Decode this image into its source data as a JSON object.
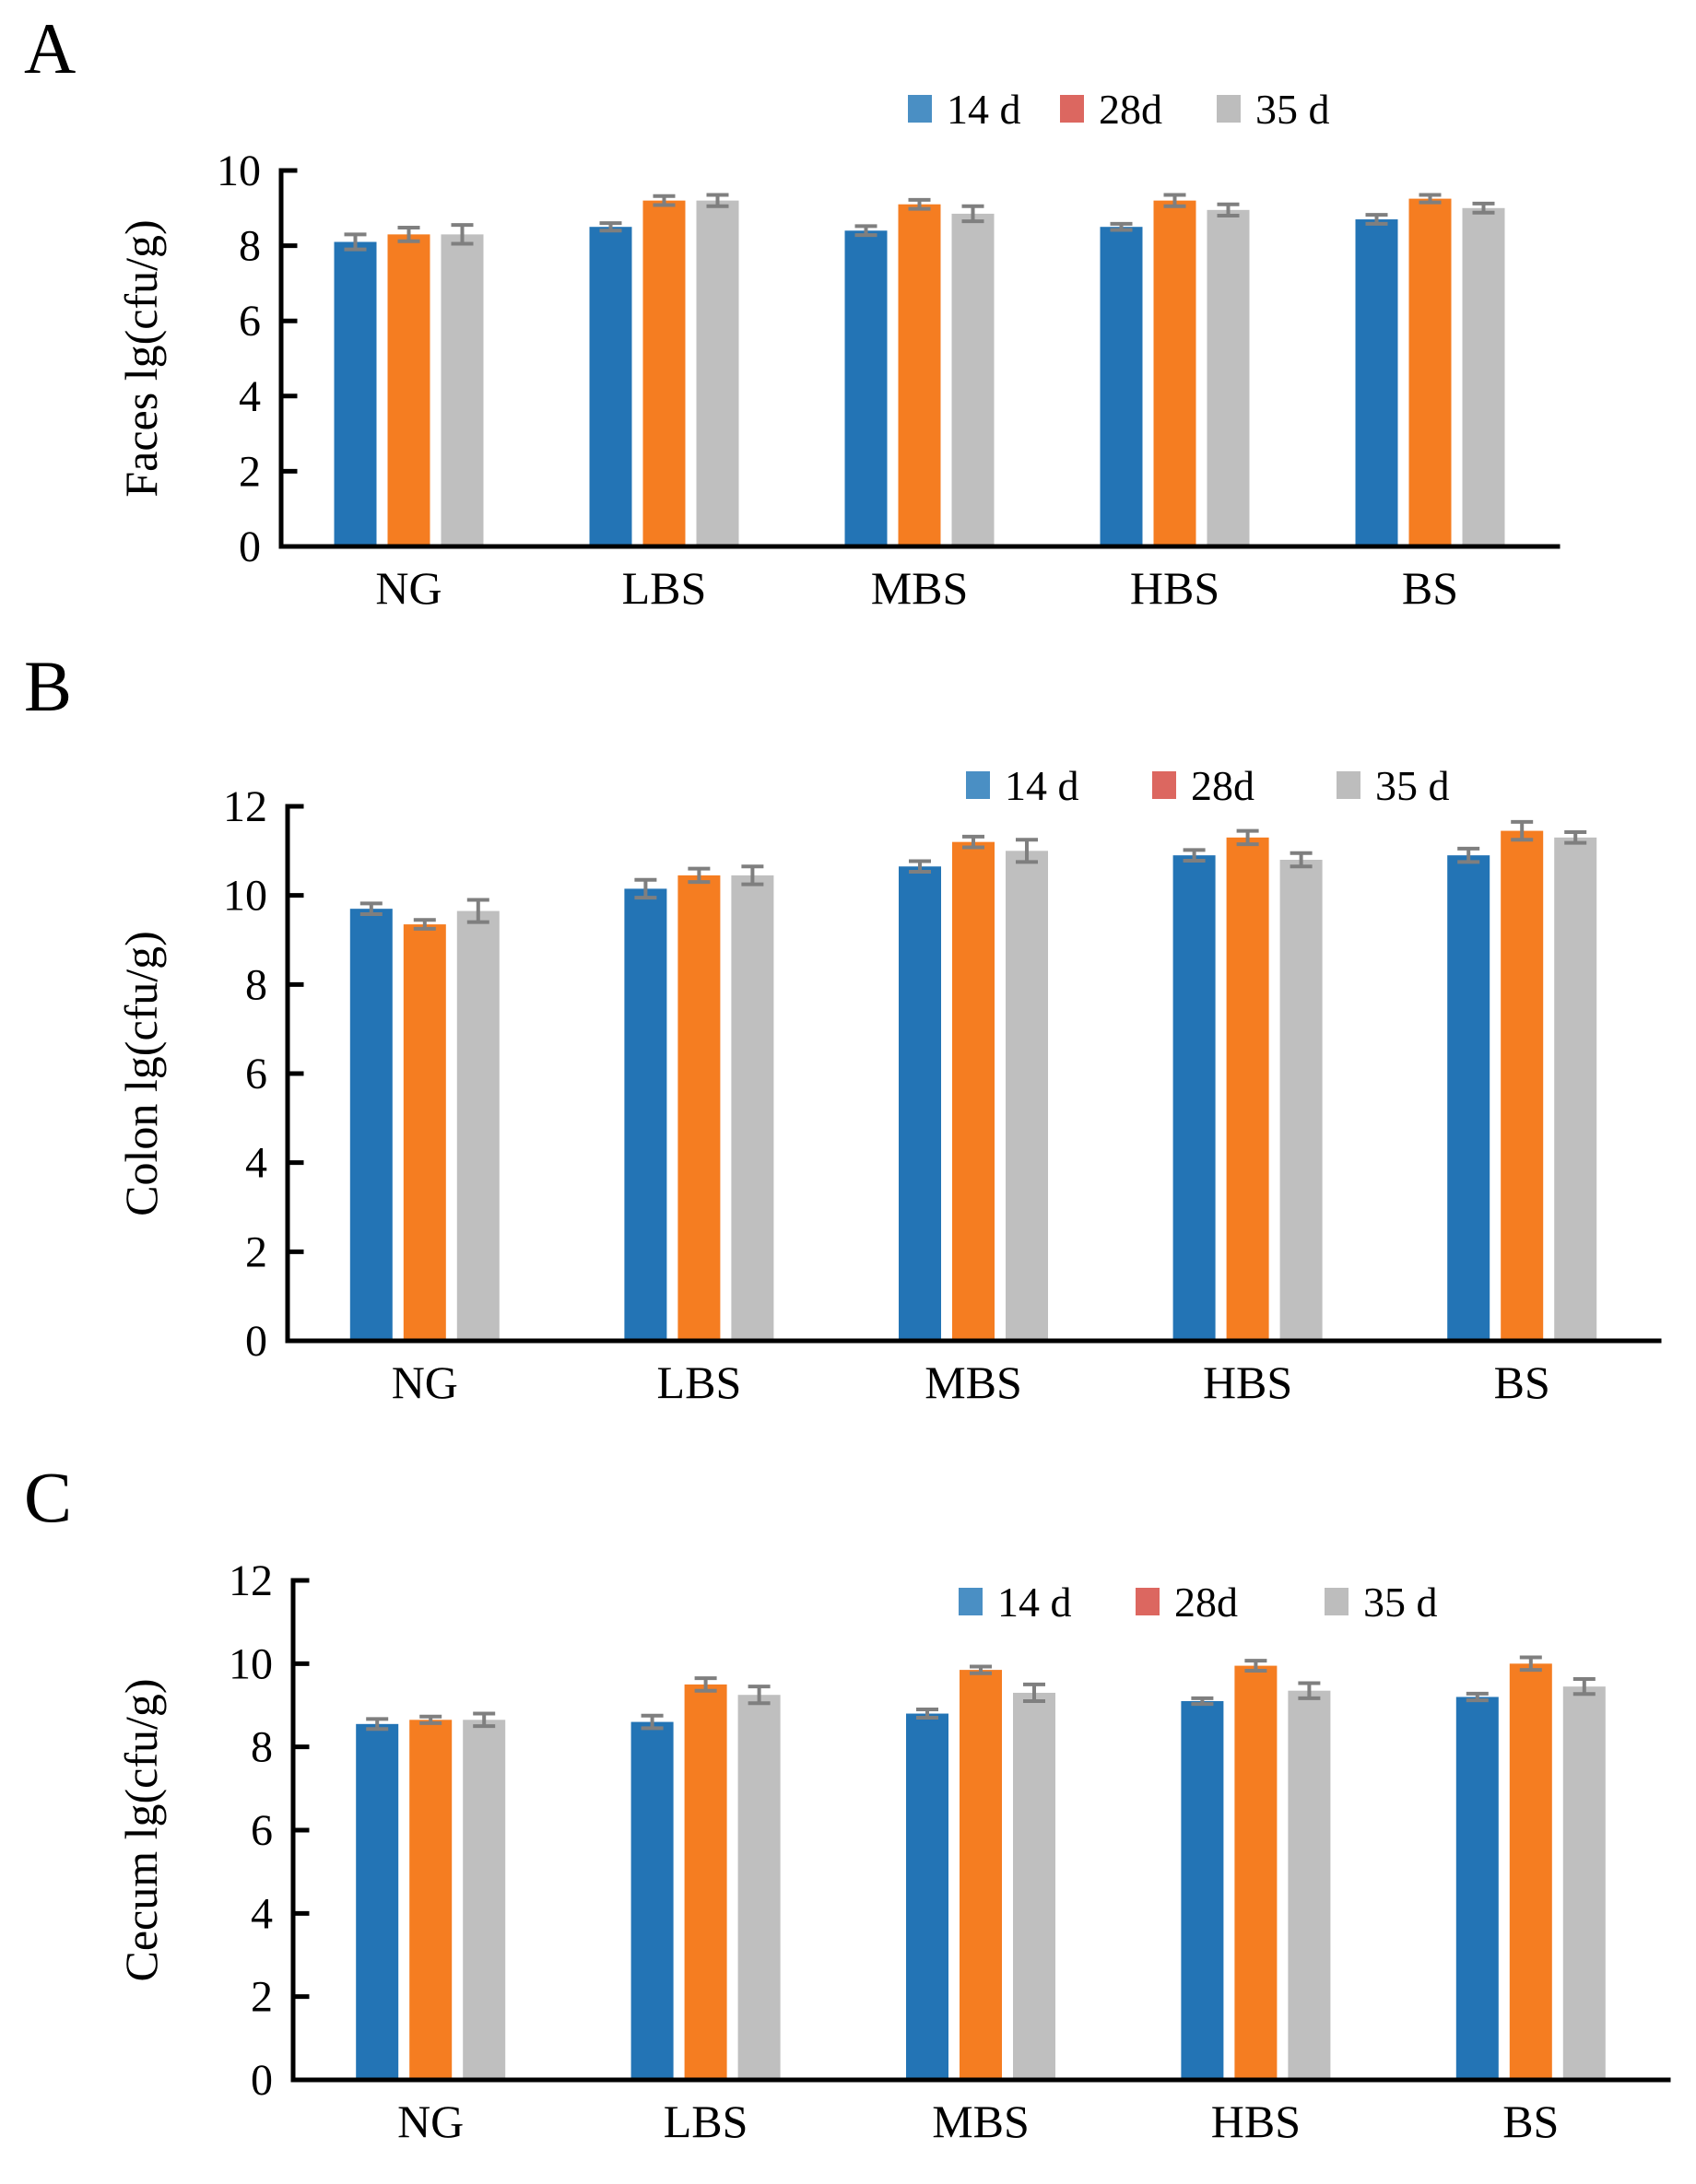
{
  "legend": {
    "items": [
      {
        "label": "14 d",
        "swatch_color": "#4A8FC4"
      },
      {
        "label": "28d",
        "swatch_color": "#DC6760"
      },
      {
        "label": "35 d",
        "swatch_color": "#BDBDBD"
      }
    ]
  },
  "colors": {
    "bar_14d": "#2374B5",
    "bar_28d": "#F57D21",
    "bar_35d": "#BFBFBF",
    "error_bar": "#7F7F7F",
    "axis": "#000000"
  },
  "chart_data": [
    {
      "panel": "A",
      "type": "bar",
      "ylabel": "Faces lg(cfu/g)",
      "categories": [
        "NG",
        "LBS",
        "MBS",
        "HBS",
        "BS"
      ],
      "series": [
        {
          "name": "14 d",
          "values": [
            8.1,
            8.5,
            8.4,
            8.5,
            8.7
          ],
          "errors": [
            0.2,
            0.1,
            0.12,
            0.08,
            0.12
          ]
        },
        {
          "name": "28d",
          "values": [
            8.3,
            9.2,
            9.1,
            9.2,
            9.25
          ],
          "errors": [
            0.18,
            0.12,
            0.12,
            0.15,
            0.1
          ]
        },
        {
          "name": "35 d",
          "values": [
            8.3,
            9.2,
            8.85,
            8.95,
            9.0
          ],
          "errors": [
            0.25,
            0.15,
            0.2,
            0.15,
            0.12
          ]
        }
      ],
      "ylim": [
        0,
        10
      ],
      "ytick_step": 2,
      "grid": false,
      "legend_position": "above-right"
    },
    {
      "panel": "B",
      "type": "bar",
      "ylabel": "Colon lg(cfu/g)",
      "categories": [
        "NG",
        "LBS",
        "MBS",
        "HBS",
        "BS"
      ],
      "series": [
        {
          "name": "14 d",
          "values": [
            9.7,
            10.15,
            10.65,
            10.9,
            10.9
          ],
          "errors": [
            0.12,
            0.2,
            0.12,
            0.12,
            0.15
          ]
        },
        {
          "name": "28d",
          "values": [
            9.35,
            10.45,
            11.2,
            11.3,
            11.45
          ],
          "errors": [
            0.1,
            0.15,
            0.12,
            0.15,
            0.2
          ]
        },
        {
          "name": "35 d",
          "values": [
            9.65,
            10.45,
            11.0,
            10.8,
            11.3
          ],
          "errors": [
            0.25,
            0.2,
            0.25,
            0.15,
            0.12
          ]
        }
      ],
      "ylim": [
        0,
        12
      ],
      "ytick_step": 2,
      "grid": false,
      "legend_position": "above-right"
    },
    {
      "panel": "C",
      "type": "bar",
      "ylabel": "Cecum lg(cfu/g)",
      "categories": [
        "NG",
        "LBS",
        "MBS",
        "HBS",
        "BS"
      ],
      "series": [
        {
          "name": "14 d",
          "values": [
            8.55,
            8.6,
            8.8,
            9.1,
            9.2
          ],
          "errors": [
            0.12,
            0.15,
            0.1,
            0.07,
            0.08
          ]
        },
        {
          "name": "28d",
          "values": [
            8.65,
            9.5,
            9.85,
            9.95,
            10.0
          ],
          "errors": [
            0.08,
            0.15,
            0.08,
            0.12,
            0.15
          ]
        },
        {
          "name": "35 d",
          "values": [
            8.65,
            9.25,
            9.3,
            9.35,
            9.45
          ],
          "errors": [
            0.15,
            0.2,
            0.2,
            0.18,
            0.18
          ]
        }
      ],
      "ylim": [
        0,
        12
      ],
      "ytick_step": 2,
      "grid": false,
      "legend_position": "inside-top-right"
    }
  ]
}
